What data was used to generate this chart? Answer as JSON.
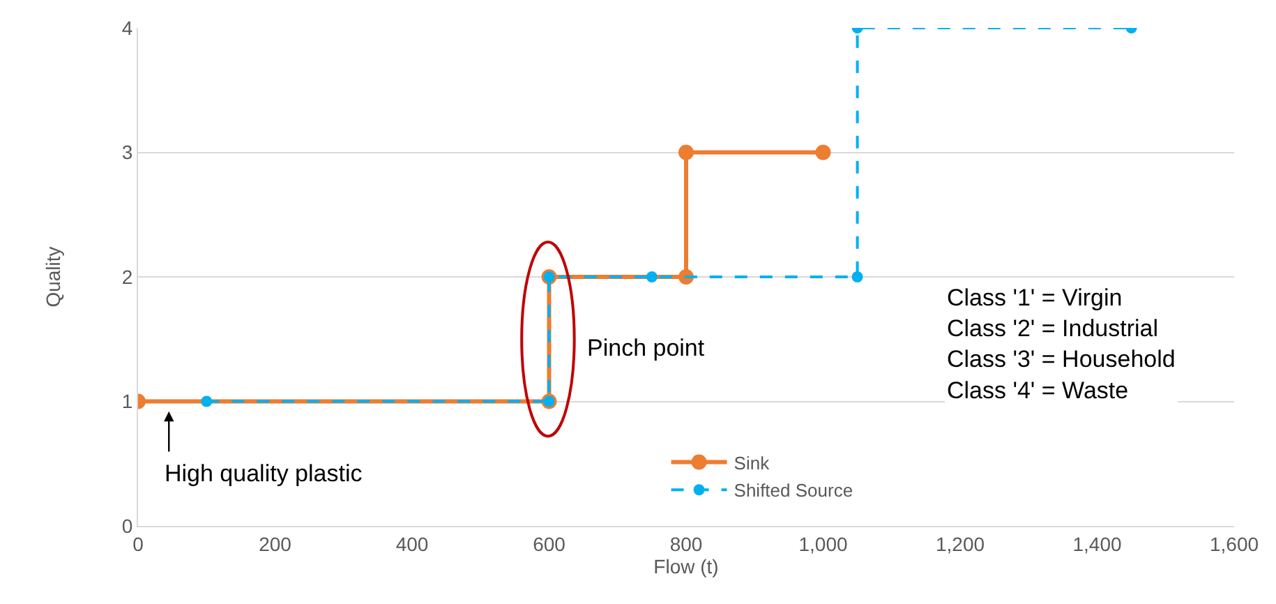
{
  "chart_data": {
    "type": "line",
    "xlabel": "Flow (t)",
    "ylabel": "Quality",
    "series": [
      {
        "name": "Sink",
        "color": "#ed7d31",
        "line_style": "solid",
        "x": [
          0,
          600,
          600,
          800,
          800,
          1000
        ],
        "values": [
          1,
          1,
          2,
          2,
          3,
          3
        ]
      },
      {
        "name": "Shifted Source",
        "color": "#00b0f0",
        "line_style": "dashed",
        "x": [
          100,
          600,
          600,
          750,
          1050,
          1050,
          1450
        ],
        "values": [
          1,
          1,
          2,
          2,
          2,
          4,
          4
        ]
      }
    ],
    "xlim": [
      0,
      1600
    ],
    "xticks": [
      0,
      200,
      400,
      600,
      {
        "value": 800,
        "label": "800"
      },
      {
        "value": 1000,
        "label": "1,000"
      },
      {
        "value": 1200,
        "label": "1,200"
      },
      {
        "value": 1400,
        "label": "1,400"
      },
      {
        "value": 1600,
        "label": "1,600"
      }
    ],
    "ylim": [
      0,
      4
    ],
    "yticks": [
      0,
      1,
      2,
      3,
      4
    ],
    "grid": "y",
    "legend": "bottom",
    "marker": "circle",
    "annotations": [
      {
        "text": "High quality plastic",
        "x": 45,
        "y": 1
      },
      {
        "text": "Pinch point",
        "x": 600,
        "y": 1.5
      },
      "Class '1' = Virgin\nClass '2' = Industrial\nClass '3' = Household\nClass '4' = Waste"
    ]
  }
}
